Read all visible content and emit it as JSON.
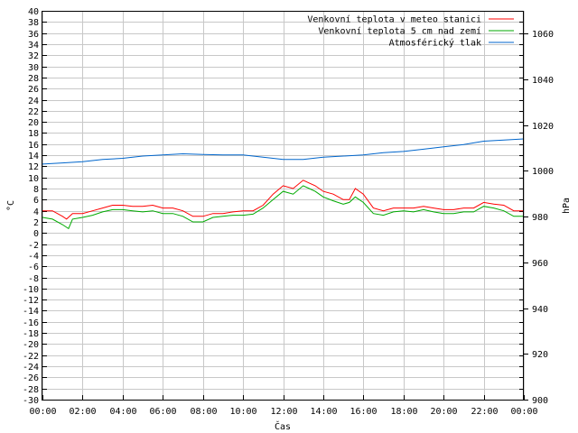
{
  "chart_data": {
    "type": "line",
    "xlabel": "Čas",
    "ylabel": "°C",
    "y2label": "hPa",
    "xlim": [
      0,
      24
    ],
    "ylim": [
      -30,
      40
    ],
    "y2lim": [
      900,
      1070
    ],
    "x_ticks": [
      "00:00",
      "02:00",
      "04:00",
      "06:00",
      "08:00",
      "10:00",
      "12:00",
      "14:00",
      "16:00",
      "18:00",
      "20:00",
      "22:00",
      "00:00"
    ],
    "y_ticks": [
      40,
      38,
      36,
      34,
      32,
      30,
      28,
      26,
      24,
      22,
      20,
      18,
      16,
      14,
      12,
      10,
      8,
      6,
      4,
      2,
      0,
      -2,
      -4,
      -6,
      -8,
      -10,
      -12,
      -14,
      -16,
      -18,
      -20,
      -22,
      -24,
      -26,
      -28,
      -30
    ],
    "y2_ticks": [
      1060,
      1040,
      1020,
      1000,
      980,
      960,
      940,
      920,
      900
    ],
    "grid": true,
    "legend_position": "top-right",
    "series": [
      {
        "name": "Venkovní teplota v meteo stanici",
        "color": "#ff0000",
        "axis": "left",
        "x": [
          0,
          0.5,
          1.0,
          1.2,
          1.5,
          2.0,
          2.5,
          3.0,
          3.5,
          4.0,
          4.5,
          5.0,
          5.5,
          6.0,
          6.5,
          7.0,
          7.5,
          8.0,
          8.5,
          9.0,
          9.5,
          10.0,
          10.5,
          11.0,
          11.5,
          12.0,
          12.5,
          13.0,
          13.3,
          13.6,
          14.0,
          14.5,
          15.0,
          15.3,
          15.6,
          16.0,
          16.5,
          17.0,
          17.5,
          18.0,
          18.5,
          19.0,
          19.5,
          20.0,
          20.5,
          21.0,
          21.5,
          22.0,
          22.5,
          23.0,
          23.5,
          24.0
        ],
        "values": [
          4.0,
          4.0,
          3.0,
          2.5,
          3.5,
          3.5,
          4.0,
          4.5,
          5.0,
          5.0,
          4.8,
          4.8,
          5.0,
          4.5,
          4.5,
          4.0,
          3.0,
          3.0,
          3.5,
          3.5,
          3.8,
          4.0,
          4.0,
          5.0,
          7.0,
          8.5,
          8.0,
          9.5,
          9.0,
          8.5,
          7.5,
          7.0,
          6.0,
          6.0,
          8.0,
          7.0,
          4.5,
          4.0,
          4.5,
          4.5,
          4.5,
          4.8,
          4.5,
          4.2,
          4.2,
          4.5,
          4.5,
          5.5,
          5.2,
          5.0,
          4.0,
          4.0
        ]
      },
      {
        "name": "Venkovní teplota 5 cm nad zemí",
        "color": "#00aa00",
        "axis": "left",
        "x": [
          0,
          0.5,
          1.0,
          1.3,
          1.5,
          2.0,
          2.5,
          3.0,
          3.5,
          4.0,
          4.5,
          5.0,
          5.5,
          6.0,
          6.5,
          7.0,
          7.5,
          8.0,
          8.5,
          9.0,
          9.5,
          10.0,
          10.5,
          11.0,
          11.5,
          12.0,
          12.5,
          13.0,
          13.3,
          13.6,
          14.0,
          14.5,
          15.0,
          15.3,
          15.6,
          16.0,
          16.5,
          17.0,
          17.5,
          18.0,
          18.5,
          19.0,
          19.5,
          20.0,
          20.5,
          21.0,
          21.5,
          22.0,
          22.5,
          23.0,
          23.5,
          24.0
        ],
        "values": [
          2.8,
          2.5,
          1.5,
          0.8,
          2.5,
          2.8,
          3.2,
          3.8,
          4.2,
          4.2,
          4.0,
          3.8,
          4.0,
          3.5,
          3.5,
          3.0,
          2.0,
          2.0,
          2.8,
          3.0,
          3.2,
          3.2,
          3.4,
          4.5,
          6.0,
          7.5,
          7.0,
          8.5,
          8.0,
          7.5,
          6.5,
          5.8,
          5.2,
          5.5,
          6.5,
          5.5,
          3.5,
          3.2,
          3.8,
          4.0,
          3.8,
          4.2,
          3.8,
          3.5,
          3.5,
          3.8,
          3.8,
          4.8,
          4.5,
          4.0,
          3.0,
          3.0
        ]
      },
      {
        "name": "Atmosférický tlak",
        "color": "#0066cc",
        "axis": "right",
        "x": [
          0,
          1,
          2,
          3,
          4,
          5,
          6,
          7,
          8,
          9,
          10,
          11,
          12,
          13,
          14,
          15,
          16,
          17,
          18,
          19,
          20,
          21,
          22,
          23,
          24
        ],
        "values": [
          1003.0,
          1003.5,
          1004.0,
          1005.0,
          1005.5,
          1006.5,
          1007.0,
          1007.5,
          1007.2,
          1007.0,
          1007.0,
          1006.0,
          1005.0,
          1005.0,
          1006.0,
          1006.5,
          1007.0,
          1008.0,
          1008.5,
          1009.5,
          1010.5,
          1011.5,
          1013.0,
          1013.5,
          1014.0
        ]
      }
    ]
  }
}
